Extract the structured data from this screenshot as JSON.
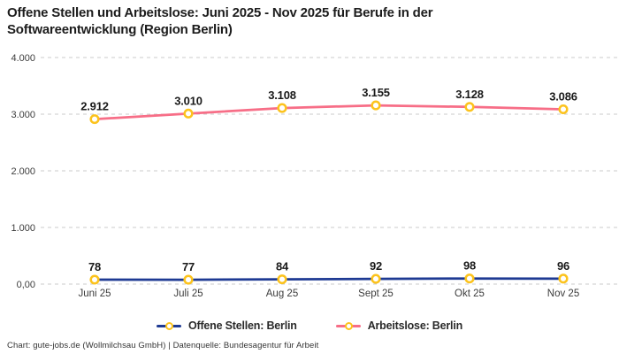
{
  "header": {
    "title_line1": "Offene Stellen und Arbeitslose: Juni 2025 - Nov 2025 für Berufe in der",
    "title_line2": "Softwareentwicklung (Region Berlin)"
  },
  "footer": {
    "credit": "Chart: gute-jobs.de (Wollmilchsau GmbH) | Datenquelle: Bundesagentur für Arbeit"
  },
  "legend": {
    "position": "bottom-center",
    "items": [
      {
        "label": "Offene Stellen: Berlin",
        "color": "#1e3a93"
      },
      {
        "label": "Arbeitslose: Berlin",
        "color": "#f76e87"
      }
    ]
  },
  "colors": {
    "background": "#ffffff",
    "grid": "#cbcbcb",
    "axis_text": "#3c3c3c",
    "data_label": "#191919",
    "series_open_positions": "#1e3a93",
    "series_unemployed": "#f76e87",
    "marker_ring": "#fcc31d",
    "marker_fill": "#ffffff"
  },
  "chart_data": {
    "type": "line",
    "title": "Offene Stellen und Arbeitslose: Juni 2025 - Nov 2025 für Berufe in der Softwareentwicklung (Region Berlin)",
    "categories": [
      "Juni 25",
      "Juli 25",
      "Aug 25",
      "Sept 25",
      "Okt 25",
      "Nov 25"
    ],
    "series": [
      {
        "id": "arbeitslose-berlin",
        "name": "Arbeitslose: Berlin",
        "color": "#f76e87",
        "values": [
          2912,
          3010,
          3108,
          3155,
          3128,
          3086
        ],
        "labels": [
          "2.912",
          "3.010",
          "3.108",
          "3.155",
          "3.128",
          "3.086"
        ]
      },
      {
        "id": "offene-stellen-berlin",
        "name": "Offene Stellen: Berlin",
        "color": "#1e3a93",
        "values": [
          78,
          77,
          84,
          92,
          98,
          96
        ],
        "labels": [
          "78",
          "77",
          "84",
          "92",
          "98",
          "96"
        ]
      }
    ],
    "xlabel": "",
    "ylabel": "",
    "ylim": [
      0,
      4000
    ],
    "y_ticks": [
      {
        "value": 0,
        "label": "0,00"
      },
      {
        "value": 1000,
        "label": "1.000"
      },
      {
        "value": 2000,
        "label": "2.000"
      },
      {
        "value": 3000,
        "label": "3.000"
      },
      {
        "value": 4000,
        "label": "4.000"
      }
    ],
    "grid": "horizontal-dashed",
    "legend_position": "bottom",
    "marker": {
      "shape": "ring",
      "ring_color": "#fcc31d",
      "fill": "#ffffff"
    }
  }
}
